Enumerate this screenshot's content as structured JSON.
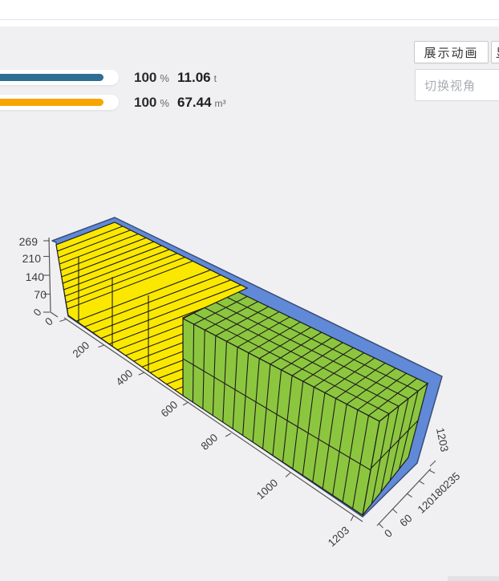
{
  "header": {
    "animate_button": "展示动画",
    "partial_button": "显",
    "view_select_placeholder": "切换视角"
  },
  "stats": {
    "rows": [
      {
        "percent": "100",
        "percent_sign": "%",
        "value": "11.06",
        "unit": "t",
        "bar_color": "#2F6E94"
      },
      {
        "percent": "100",
        "percent_sign": "%",
        "value": "67.44",
        "unit": "m³",
        "bar_color": "#F7A600"
      }
    ]
  },
  "chart_data": {
    "type": "3d-container-packing",
    "container": {
      "length_cm": 1203,
      "width_cm": 235,
      "height_cm": 269,
      "color": "#6089D8",
      "edge_color": "#3A4E7A"
    },
    "axes": {
      "length": {
        "ticks": [
          "0",
          "200",
          "400",
          "600",
          "800",
          "1000",
          "1203"
        ]
      },
      "width": {
        "ticks": [
          "0",
          "60",
          "120",
          "180",
          "235"
        ],
        "far_end_label": "1203"
      },
      "height": {
        "ticks": [
          "0",
          "70",
          "140",
          "210",
          "269"
        ]
      }
    },
    "cargo_groups": [
      {
        "name": "stacked-slabs",
        "color": "#FBE800",
        "region": "left part of container"
      },
      {
        "name": "upright-panels",
        "color": "#8CC63F",
        "region": "right part of container"
      }
    ],
    "utilization": {
      "weight": {
        "percent": 100,
        "value": "11.06",
        "unit": "t"
      },
      "volume": {
        "percent": 100,
        "value": "67.44",
        "unit": "m³"
      }
    }
  }
}
